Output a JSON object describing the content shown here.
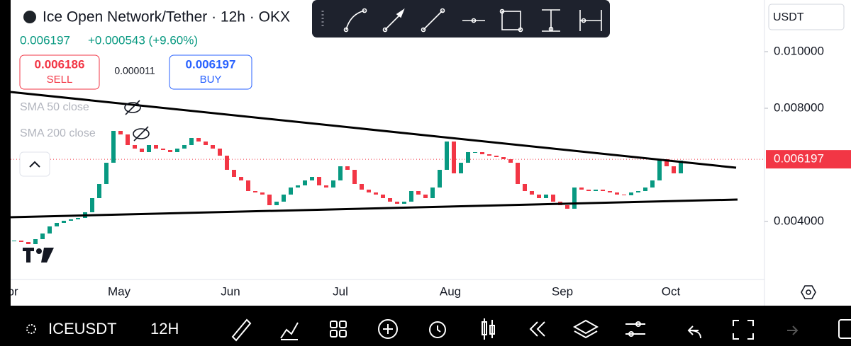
{
  "header": {
    "symbol_title": "Ice Open Network/Tether · 12h · OKX",
    "last": "0.006197",
    "change": "+0.000543 (+9.60%)"
  },
  "trade": {
    "sell_price": "0.006186",
    "sell_label": "SELL",
    "spread": "0.000011",
    "buy_price": "0.006197",
    "buy_label": "BUY"
  },
  "indicators": [
    "SMA 50 close",
    "SMA 200 close"
  ],
  "currency": "USDT",
  "chart_data": {
    "type": "candlestick",
    "x_labels": [
      "pr",
      "May",
      "Jun",
      "Jul",
      "Aug",
      "Sep",
      "Oct"
    ],
    "values": [
      0.003325,
      0.003275,
      0.0032,
      0.003375,
      0.003575,
      0.003825,
      0.00395,
      0.004025,
      0.004075,
      0.004125,
      0.004325,
      0.004825,
      0.005325,
      0.006075,
      0.0072,
      0.007075,
      0.0067,
      0.006575,
      0.00645,
      0.0067,
      0.006575,
      0.006525,
      0.00645,
      0.006575,
      0.0067,
      0.00695,
      0.006825,
      0.0067,
      0.006575,
      0.006325,
      0.005825,
      0.005575,
      0.00545,
      0.005075,
      0.005025,
      0.00495,
      0.004575,
      0.0047,
      0.00495,
      0.0052,
      0.005275,
      0.00545,
      0.005575,
      0.005275,
      0.0052,
      0.00545,
      0.00595,
      0.005825,
      0.005325,
      0.005125,
      0.005025,
      0.00495,
      0.004825,
      0.0047,
      0.004625,
      0.0047,
      0.005075,
      0.00495,
      0.004825,
      0.0052,
      0.005825,
      0.006825,
      0.0057,
      0.006075,
      0.00645,
      0.00645,
      0.006375,
      0.006325,
      0.006275,
      0.0062,
      0.006075,
      0.005325,
      0.005075,
      0.00495,
      0.004825,
      0.00495,
      0.0047,
      0.004575,
      0.00445,
      0.0052,
      0.005125,
      0.005075,
      0.005125,
      0.005075,
      0.005025,
      0.00495,
      0.004925,
      0.005025,
      0.005075,
      0.0052,
      0.00545,
      0.0062,
      0.00595,
      0.0057,
      0.00615
    ],
    "up_color": "#089981",
    "down_color": "#f23645",
    "ylim": [
      0.00195,
      0.011825
    ],
    "yticks": [
      {
        "value": 0.01,
        "label": "0.010000"
      },
      {
        "value": 0.008,
        "label": "0.008000"
      },
      {
        "value": 0.004,
        "label": "0.004000"
      }
    ],
    "last_price": 0.006197,
    "last_price_color": "#f23645"
  },
  "bottom_bar": {
    "symbol": "ICEUSDT",
    "interval": "12H"
  }
}
